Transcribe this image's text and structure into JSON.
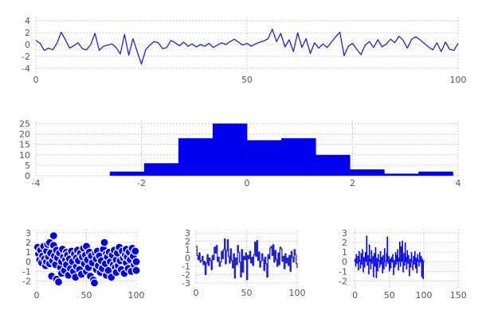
{
  "style": {
    "background": "#ffffff",
    "grid_color": "#ccccdb",
    "tick_label_color": "#555555",
    "line_color": "#2323cd",
    "fill_color": "#0000ee",
    "scatter_edge_color": "#ffffff"
  },
  "chart_data": [
    {
      "id": "timeseries",
      "type": "line",
      "title": "",
      "xlabel": "",
      "ylabel": "",
      "x_start": 0,
      "x_step": 1,
      "values": [
        0.7,
        0.2,
        -1.0,
        -0.6,
        -0.9,
        0.2,
        2.1,
        0.8,
        -0.6,
        -0.2,
        0.3,
        -0.7,
        -0.9,
        0.0,
        1.9,
        -1.0,
        -0.3,
        -0.1,
        0.1,
        -0.5,
        -1.6,
        1.7,
        -1.8,
        1.0,
        -1.2,
        -3.3,
        -0.9,
        -0.1,
        0.5,
        0.3,
        -0.7,
        -0.5,
        0.7,
        0.3,
        -0.2,
        0.4,
        -0.3,
        0.1,
        -0.4,
        0.0,
        -0.3,
        0.2,
        -0.5,
        -0.1,
        0.3,
        0.0,
        0.5,
        0.9,
        0.4,
        -0.1,
        0.2,
        -0.3,
        0.1,
        0.4,
        0.6,
        1.0,
        2.6,
        0.5,
        1.9,
        -0.4,
        0.8,
        -1.2,
        2.0,
        -0.5,
        1.0,
        -1.5,
        0.3,
        -0.6,
        0.1,
        -0.5,
        0.4,
        1.3,
        2.1,
        -1.9,
        -0.3,
        0.2,
        -0.8,
        -1.7,
        -0.1,
        0.5,
        -0.5,
        0.8,
        -0.4,
        0.1,
        0.9,
        0.3,
        1.4,
        0.7,
        -0.6,
        0.9,
        1.3,
        0.8,
        0.2,
        -0.4,
        -0.9,
        0.3,
        -1.2,
        0.4,
        -0.8,
        -1.0,
        0.2
      ],
      "xticks": [
        0,
        50,
        100
      ],
      "yticks": [
        -4,
        -2,
        0,
        2,
        4
      ],
      "xlim": [
        0,
        100
      ],
      "ylim": [
        -4.7,
        4.7
      ],
      "grid": true,
      "legend": false
    },
    {
      "id": "histogram",
      "type": "bar",
      "title": "",
      "bin_start": -2.6,
      "bin_width": 0.65,
      "values": [
        2,
        6,
        18,
        25,
        17,
        18,
        10,
        3,
        1,
        2
      ],
      "xticks": [
        -4,
        -2,
        0,
        2,
        4
      ],
      "yticks": [
        0,
        5,
        10,
        15,
        20,
        25
      ],
      "xlim": [
        -4,
        4
      ],
      "ylim": [
        0,
        26.3
      ],
      "grid": true,
      "legend": false
    },
    {
      "id": "scatter",
      "type": "scatter",
      "title": "",
      "points": [
        [
          1,
          1.5
        ],
        [
          2,
          0.8
        ],
        [
          3,
          0.2
        ],
        [
          4,
          1.2
        ],
        [
          5,
          -0.1
        ],
        [
          6,
          0.6
        ],
        [
          7,
          1.6
        ],
        [
          8,
          0.3
        ],
        [
          9,
          -0.4
        ],
        [
          10,
          1.1
        ],
        [
          10,
          0.0
        ],
        [
          11,
          1.8
        ],
        [
          12,
          0.5
        ],
        [
          13,
          2.0
        ],
        [
          13,
          -0.2
        ],
        [
          14,
          0.9
        ],
        [
          15,
          -1.5
        ],
        [
          16,
          0.1
        ],
        [
          17,
          2.7
        ],
        [
          17,
          1.7
        ],
        [
          18,
          0.6
        ],
        [
          19,
          -0.3
        ],
        [
          20,
          1.2
        ],
        [
          20,
          -1.8
        ],
        [
          21,
          0.4
        ],
        [
          22,
          -2.1
        ],
        [
          23,
          0.9
        ],
        [
          24,
          -0.6
        ],
        [
          25,
          0.0
        ],
        [
          25,
          -1.2
        ],
        [
          26,
          1.3
        ],
        [
          27,
          0.5
        ],
        [
          28,
          -0.9
        ],
        [
          29,
          0.2
        ],
        [
          30,
          -0.3
        ],
        [
          30,
          1.0
        ],
        [
          31,
          0.7
        ],
        [
          32,
          -1.4
        ],
        [
          33,
          0.3
        ],
        [
          34,
          -0.7
        ],
        [
          35,
          1.1
        ],
        [
          36,
          0.0
        ],
        [
          37,
          -1.0
        ],
        [
          38,
          0.8
        ],
        [
          39,
          -1.6
        ],
        [
          40,
          0.4
        ],
        [
          40,
          -0.5
        ],
        [
          41,
          1.2
        ],
        [
          42,
          0.1
        ],
        [
          43,
          -0.8
        ],
        [
          44,
          0.9
        ],
        [
          45,
          -1.3
        ],
        [
          46,
          0.5
        ],
        [
          47,
          1.4
        ],
        [
          48,
          -0.2
        ],
        [
          49,
          0.7
        ],
        [
          50,
          -1.0
        ],
        [
          50,
          1.6
        ],
        [
          51,
          0.2
        ],
        [
          52,
          -0.6
        ],
        [
          53,
          1.0
        ],
        [
          54,
          -1.5
        ],
        [
          55,
          0.6
        ],
        [
          56,
          -0.1
        ],
        [
          57,
          -1.9
        ],
        [
          58,
          -2.2
        ],
        [
          59,
          0.9
        ],
        [
          60,
          0.3
        ],
        [
          60,
          -0.8
        ],
        [
          61,
          1.1
        ],
        [
          62,
          -0.4
        ],
        [
          63,
          0.6
        ],
        [
          64,
          -1.1
        ],
        [
          65,
          0.1
        ],
        [
          66,
          -0.7
        ],
        [
          67,
          1.3
        ],
        [
          68,
          2.0
        ],
        [
          69,
          -0.2
        ],
        [
          70,
          0.8
        ],
        [
          70,
          -1.4
        ],
        [
          71,
          0.5
        ],
        [
          72,
          -0.9
        ],
        [
          73,
          1.0
        ],
        [
          74,
          0.0
        ],
        [
          75,
          -1.6
        ],
        [
          76,
          0.7
        ],
        [
          77,
          -0.3
        ],
        [
          78,
          1.2
        ],
        [
          79,
          -0.6
        ],
        [
          80,
          0.2
        ],
        [
          80,
          -1.1
        ],
        [
          81,
          0.9
        ],
        [
          82,
          -0.4
        ],
        [
          83,
          1.5
        ],
        [
          84,
          0.1
        ],
        [
          85,
          -0.8
        ],
        [
          86,
          1.1
        ],
        [
          87,
          0.4
        ],
        [
          88,
          -1.2
        ],
        [
          89,
          0.7
        ],
        [
          90,
          -0.1
        ],
        [
          90,
          1.3
        ],
        [
          91,
          0.5
        ],
        [
          92,
          -0.7
        ],
        [
          93,
          1.0
        ],
        [
          94,
          0.2
        ],
        [
          95,
          -1.0
        ],
        [
          96,
          1.4
        ],
        [
          97,
          0.6
        ],
        [
          98,
          -0.3
        ],
        [
          99,
          1.1
        ],
        [
          100,
          0.0
        ],
        [
          100,
          -0.9
        ]
      ],
      "xticks": [
        0,
        50,
        100
      ],
      "yticks": [
        -2,
        -1,
        0,
        1,
        2,
        3
      ],
      "xlim": [
        0,
        100
      ],
      "ylim": [
        -2.7,
        3.4
      ],
      "grid": true,
      "legend": false
    },
    {
      "id": "step",
      "type": "line",
      "line_style": "step",
      "title": "",
      "x_start": 0,
      "x_step": 1,
      "values": [
        1.4,
        0.3,
        -0.2,
        0.6,
        -0.5,
        -0.3,
        0.2,
        -0.8,
        -0.4,
        -2.0,
        -0.6,
        0.4,
        -0.9,
        0.0,
        -0.3,
        -1.4,
        0.3,
        -0.2,
        1.3,
        0.6,
        1.5,
        -0.4,
        0.1,
        -1.0,
        -0.5,
        0.8,
        -0.1,
        1.0,
        2.3,
        -0.7,
        0.9,
        2.2,
        0.2,
        -0.6,
        1.1,
        -0.3,
        -1.2,
        0.5,
        -2.4,
        0.0,
        -0.8,
        1.5,
        0.7,
        -0.5,
        -2.3,
        1.0,
        -1.7,
        0.2,
        -0.2,
        0.6,
        -2.6,
        0.3,
        -0.1,
        0.8,
        -0.6,
        0.1,
        -0.9,
        0.4,
        1.9,
        0.2,
        2.1,
        -0.3,
        0.7,
        -1.1,
        -0.4,
        0.5,
        -0.2,
        -1.5,
        0.1,
        -0.7,
        -2.3,
        0.4,
        -0.1,
        1.2,
        1.4,
        0.3,
        1.6,
        -0.5,
        0.9,
        -0.2,
        -1.0,
        0.6,
        -0.8,
        1.3,
        1.1,
        -0.4,
        0.2,
        -1.3,
        0.5,
        -0.6,
        0.0,
        -0.9,
        0.3,
        -1.6,
        0.8,
        0.1,
        -0.5,
        1.0,
        0.4,
        -0.7,
        -1.2
      ],
      "xticks": [
        0,
        50,
        100
      ],
      "yticks": [
        -3,
        -2,
        -1,
        0,
        1,
        2,
        3
      ],
      "xlim": [
        0,
        100
      ],
      "ylim": [
        -3.3,
        3.3
      ],
      "grid": true,
      "legend": false
    },
    {
      "id": "bars",
      "type": "bar",
      "title": "",
      "bar_width": 0.8,
      "x_start": 0,
      "x_step": 1,
      "values": [
        0.3,
        -0.5,
        0.8,
        -0.2,
        0.6,
        -0.9,
        1.1,
        0.2,
        -0.7,
        0.9,
        -0.3,
        1.3,
        -1.1,
        0.5,
        -0.6,
        1.0,
        0.1,
        2.7,
        -0.4,
        0.7,
        -1.3,
        1.8,
        0.3,
        -0.8,
        1.2,
        -0.2,
        0.6,
        -1.6,
        0.9,
        -0.5,
        1.5,
        -1.7,
        0.4,
        -1.0,
        0.8,
        0.2,
        -0.6,
        1.1,
        -0.3,
        0.5,
        -1.2,
        0.7,
        -0.8,
        1.4,
        0.1,
        -0.5,
        0.9,
        2.6,
        -0.2,
        0.6,
        -1.0,
        0.3,
        -0.7,
        0.5,
        -0.1,
        0.8,
        -1.4,
        0.2,
        -0.6,
        1.0,
        -0.3,
        0.7,
        1.3,
        -0.9,
        0.4,
        2.1,
        -0.5,
        1.6,
        0.2,
        2.2,
        -1.1,
        0.9,
        -0.4,
        2.0,
        0.5,
        -0.8,
        1.2,
        -0.2,
        0.7,
        -1.5,
        0.3,
        -0.6,
        1.0,
        0.1,
        -0.9,
        0.6,
        -0.3,
        1.1,
        -0.7,
        0.4,
        -1.2,
        0.8,
        0.2,
        -0.5,
        1.0,
        -0.1,
        0.6,
        -1.6,
        0.3,
        -1.8,
        0.1
      ],
      "xticks": [
        0,
        50,
        100,
        150
      ],
      "yticks": [
        -2,
        -1,
        0,
        1,
        2,
        3
      ],
      "xlim": [
        -3,
        152
      ],
      "ylim": [
        -2.7,
        3.4
      ],
      "grid": true,
      "legend": false
    }
  ]
}
